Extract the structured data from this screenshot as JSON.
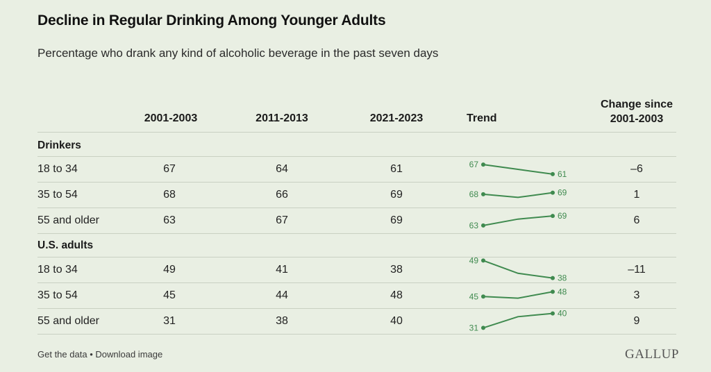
{
  "title": "Decline in Regular Drinking Among Younger Adults",
  "subtitle": "Percentage who drank any kind of alcoholic beverage in the past seven days",
  "columns": {
    "c1": "2001-2003",
    "c2": "2011-2013",
    "c3": "2021-2023",
    "trend": "Trend",
    "change_line1": "Change since",
    "change_line2": "2001-2003"
  },
  "groups": [
    {
      "label": "Drinkers",
      "rows": [
        {
          "label": "18 to 34",
          "v1": "67",
          "v2": "64",
          "v3": "61",
          "change": "–6"
        },
        {
          "label": "35 to 54",
          "v1": "68",
          "v2": "66",
          "v3": "69",
          "change": "1"
        },
        {
          "label": "55 and older",
          "v1": "63",
          "v2": "67",
          "v3": "69",
          "change": "6"
        }
      ]
    },
    {
      "label": "U.S. adults",
      "rows": [
        {
          "label": "18 to 34",
          "v1": "49",
          "v2": "41",
          "v3": "38",
          "change": "–11"
        },
        {
          "label": "35 to 54",
          "v1": "45",
          "v2": "44",
          "v3": "48",
          "change": "3"
        },
        {
          "label": "55 and older",
          "v1": "31",
          "v2": "38",
          "v3": "40",
          "change": "9"
        }
      ]
    }
  ],
  "footer": {
    "get_data": "Get the data",
    "separator": "•",
    "download": "Download image"
  },
  "logo": "GALLUP",
  "colors": {
    "trend_line": "#3f8a4f",
    "background": "#e9efe3"
  },
  "chart_data": {
    "type": "table",
    "title": "Decline in Regular Drinking Among Younger Adults",
    "subtitle": "Percentage who drank any kind of alcoholic beverage in the past seven days",
    "x": [
      "2001-2003",
      "2011-2013",
      "2021-2023"
    ],
    "series": [
      {
        "name": "Drinkers 18 to 34",
        "values": [
          67,
          64,
          61
        ]
      },
      {
        "name": "Drinkers 35 to 54",
        "values": [
          68,
          66,
          69
        ]
      },
      {
        "name": "Drinkers 55 and older",
        "values": [
          63,
          67,
          69
        ]
      },
      {
        "name": "U.S. adults 18 to 34",
        "values": [
          49,
          41,
          38
        ]
      },
      {
        "name": "U.S. adults 35 to 54",
        "values": [
          45,
          44,
          48
        ]
      },
      {
        "name": "U.S. adults 55 and older",
        "values": [
          31,
          38,
          40
        ]
      }
    ],
    "change_since_2001_2003": [
      -6,
      1,
      6,
      -11,
      3,
      9
    ]
  }
}
